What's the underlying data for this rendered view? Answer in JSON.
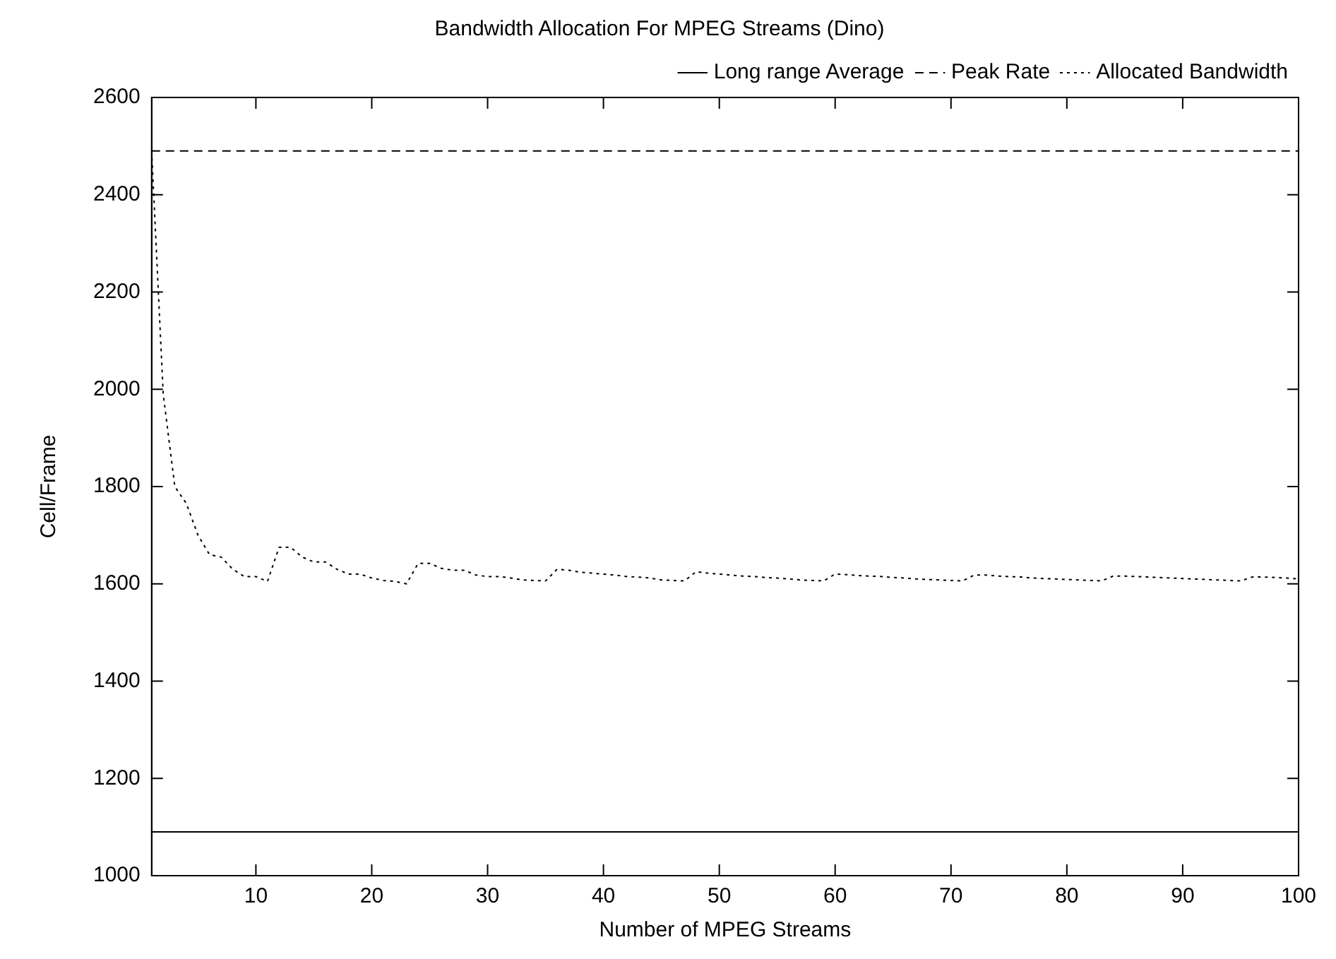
{
  "chart_data": {
    "type": "line",
    "title": "Bandwidth Allocation For MPEG Streams (Dino)",
    "xlabel": "Number of MPEG Streams",
    "ylabel": "Cell/Frame",
    "xlim": [
      1,
      100
    ],
    "xticks": [
      10,
      20,
      30,
      40,
      50,
      60,
      70,
      80,
      90,
      100
    ],
    "ylim": [
      1000,
      2600
    ],
    "yticks": [
      1000,
      1200,
      1400,
      1600,
      1800,
      2000,
      2200,
      2400,
      2600
    ],
    "grid": false,
    "legend": "top right",
    "marker": "none",
    "series": [
      {
        "name": "Long range Average",
        "color": "#000000",
        "line_style": "solid",
        "x": [
          1,
          100
        ],
        "values": [
          1090,
          1090
        ]
      },
      {
        "name": "Peak Rate",
        "color": "#000000",
        "line_style": "dashed",
        "x": [
          1,
          100
        ],
        "values": [
          2490,
          2490
        ]
      },
      {
        "name": "Allocated Bandwidth",
        "color": "#000000",
        "line_style": "dotted",
        "x": [
          1,
          2,
          3,
          4,
          5,
          6,
          7,
          8,
          9,
          10,
          11,
          12,
          13,
          14,
          15,
          16,
          17,
          18,
          19,
          20,
          21,
          22,
          23,
          24,
          25,
          26,
          27,
          28,
          29,
          30,
          31,
          32,
          33,
          34,
          35,
          36,
          37,
          38,
          39,
          40,
          41,
          42,
          43,
          44,
          45,
          46,
          47,
          48,
          49,
          50,
          51,
          52,
          53,
          54,
          55,
          56,
          57,
          58,
          59,
          60,
          61,
          62,
          63,
          64,
          65,
          66,
          67,
          68,
          69,
          70,
          71,
          72,
          73,
          74,
          75,
          76,
          77,
          78,
          79,
          80,
          81,
          82,
          83,
          84,
          85,
          86,
          87,
          88,
          89,
          90,
          91,
          92,
          93,
          94,
          95,
          96,
          97,
          98,
          99,
          100
        ],
        "values": [
          2490,
          1990,
          1800,
          1765,
          1700,
          1660,
          1655,
          1630,
          1615,
          1615,
          1605,
          1675,
          1675,
          1655,
          1645,
          1645,
          1630,
          1620,
          1620,
          1612,
          1607,
          1605,
          1600,
          1642,
          1642,
          1632,
          1628,
          1628,
          1618,
          1615,
          1615,
          1612,
          1608,
          1607,
          1606,
          1630,
          1628,
          1624,
          1622,
          1620,
          1618,
          1615,
          1614,
          1612,
          1608,
          1607,
          1606,
          1625,
          1622,
          1620,
          1618,
          1616,
          1615,
          1613,
          1612,
          1610,
          1608,
          1607,
          1606,
          1620,
          1619,
          1617,
          1616,
          1615,
          1613,
          1612,
          1610,
          1609,
          1608,
          1607,
          1606,
          1618,
          1618,
          1616,
          1615,
          1614,
          1612,
          1611,
          1610,
          1609,
          1608,
          1607,
          1606,
          1616,
          1616,
          1615,
          1614,
          1613,
          1612,
          1611,
          1610,
          1609,
          1608,
          1607,
          1606,
          1614,
          1614,
          1613,
          1612,
          1610
        ]
      }
    ]
  }
}
